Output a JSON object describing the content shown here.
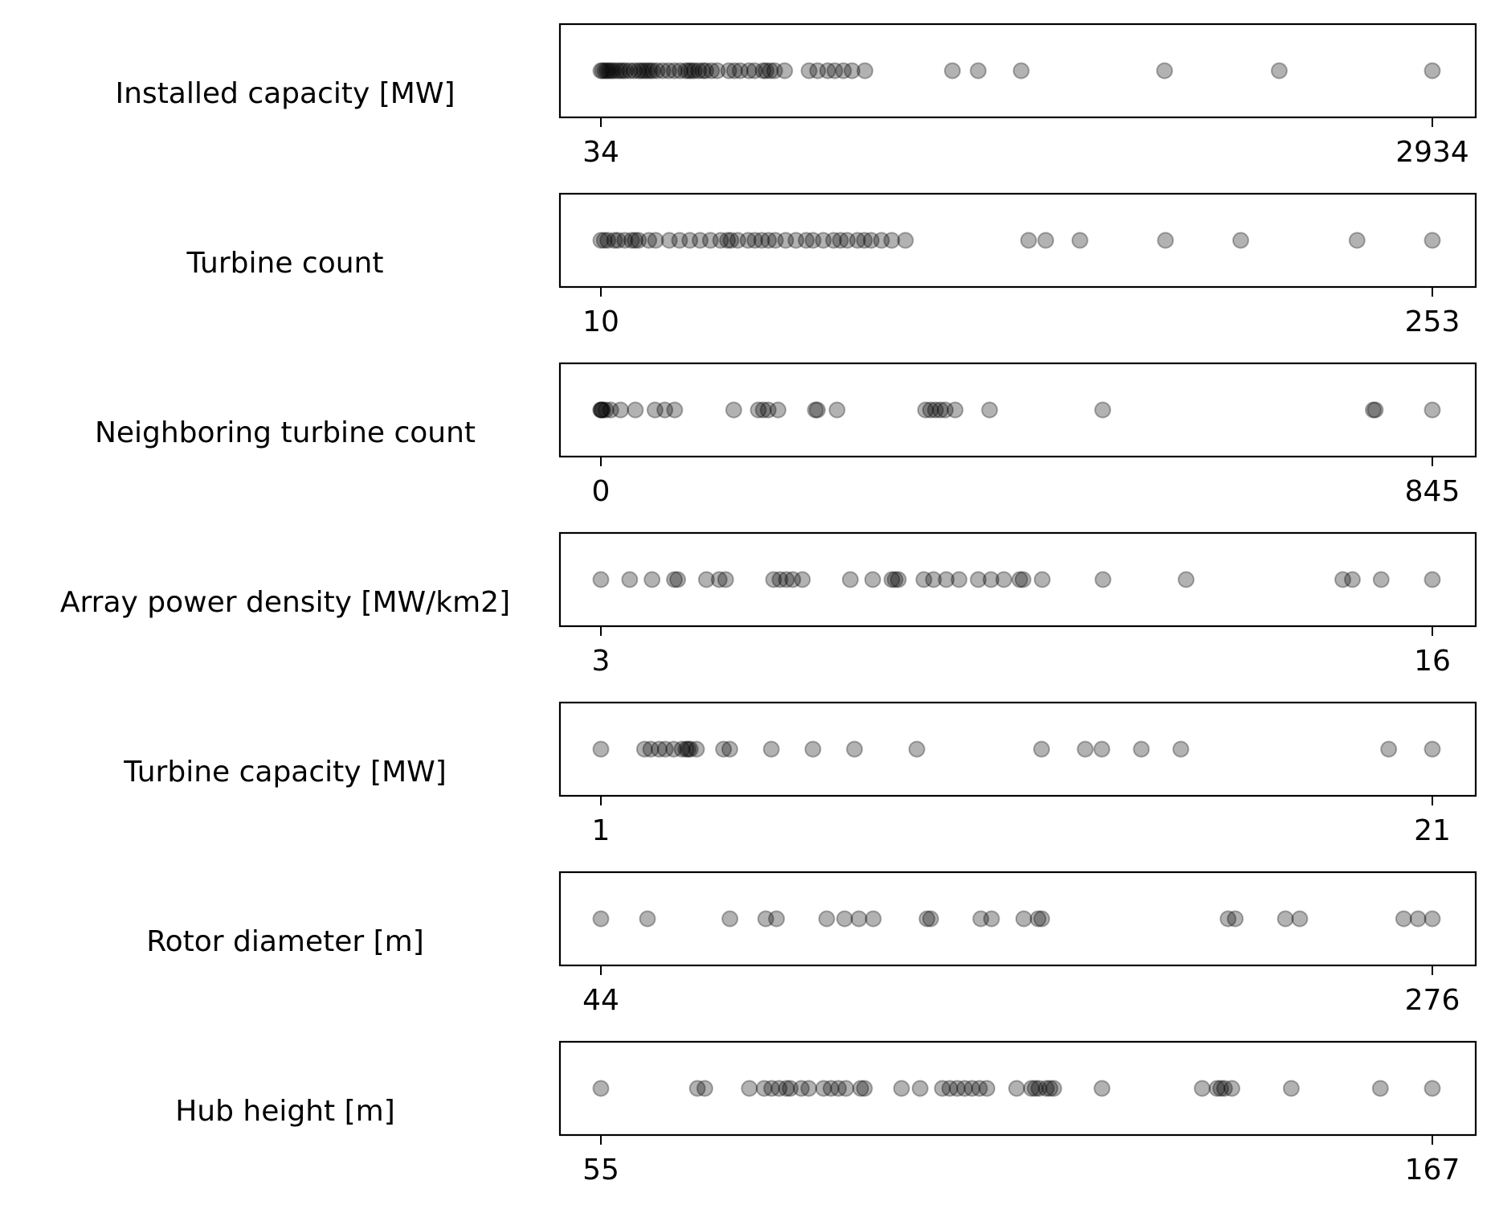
{
  "chart_data": {
    "type": "strip",
    "marker_color": "#000000",
    "marker_alpha": 0.3,
    "panels": [
      {
        "label": "Installed capacity [MW]",
        "range": [
          34,
          2934
        ],
        "tick_labels": [
          "34",
          "2934"
        ],
        "values": [
          34,
          40,
          48,
          55,
          62,
          70,
          78,
          90,
          100,
          110,
          120,
          135,
          150,
          165,
          175,
          185,
          195,
          205,
          215,
          230,
          250,
          270,
          290,
          310,
          330,
          340,
          350,
          360,
          375,
          390,
          400,
          420,
          440,
          480,
          500,
          520,
          550,
          570,
          600,
          610,
          625,
          640,
          675,
          760,
          790,
          825,
          850,
          880,
          910,
          955,
          1260,
          1350,
          1500,
          2000,
          2400,
          2934
        ]
      },
      {
        "label": "Turbine count",
        "range": [
          10,
          253
        ],
        "tick_labels": [
          "10",
          "253"
        ],
        "values": [
          10,
          11,
          12,
          14,
          15,
          17,
          19,
          20,
          21,
          24,
          26,
          30,
          33,
          36,
          39,
          42,
          45,
          47,
          48,
          50,
          53,
          55,
          57,
          59,
          61,
          64,
          67,
          70,
          72,
          75,
          78,
          80,
          82,
          85,
          87,
          89,
          92,
          95,
          99,
          135,
          140,
          150,
          175,
          197,
          231,
          253
        ]
      },
      {
        "label": "Neighboring turbine count",
        "range": [
          0,
          845
        ],
        "tick_labels": [
          "0",
          "845"
        ],
        "values": [
          0,
          0,
          1,
          2,
          5,
          10,
          20,
          35,
          55,
          65,
          75,
          135,
          160,
          165,
          170,
          180,
          218,
          220,
          240,
          330,
          335,
          340,
          345,
          350,
          360,
          395,
          510,
          785,
          787,
          845
        ]
      },
      {
        "label": "Array power density [MW/km2]",
        "range": [
          3,
          16
        ],
        "tick_labels": [
          "3",
          "16"
        ],
        "values": [
          3,
          3.45,
          3.8,
          4.15,
          4.2,
          4.65,
          4.85,
          4.95,
          5.7,
          5.8,
          5.9,
          6.0,
          6.15,
          6.9,
          7.25,
          7.55,
          7.6,
          7.65,
          8.05,
          8.2,
          8.4,
          8.6,
          8.9,
          9.1,
          9.3,
          9.55,
          9.6,
          9.9,
          10.85,
          12.15,
          14.6,
          14.75,
          15.2,
          16
        ]
      },
      {
        "label": "Turbine capacity [MW]",
        "range": [
          1,
          21
        ],
        "tick_labels": [
          "1",
          "21"
        ],
        "values": [
          1,
          2.05,
          2.2,
          2.4,
          2.55,
          2.75,
          2.95,
          3.05,
          3.1,
          3.15,
          3.3,
          3.95,
          4.1,
          5.1,
          6.1,
          7.1,
          8.6,
          11.6,
          12.65,
          13.05,
          14.0,
          14.95,
          19.95,
          21
        ]
      },
      {
        "label": "Rotor diameter [m]",
        "range": [
          44,
          276
        ],
        "tick_labels": [
          "44",
          "276"
        ],
        "values": [
          44,
          57,
          80,
          90,
          93,
          107,
          112,
          116,
          120,
          135,
          136,
          150,
          153,
          162,
          166,
          167,
          219,
          221,
          235,
          239,
          268,
          272,
          276
        ]
      },
      {
        "label": "Hub height [m]",
        "range": [
          55,
          167
        ],
        "tick_labels": [
          "55",
          "167"
        ],
        "values": [
          55,
          68,
          69,
          75,
          77,
          78,
          79,
          80,
          80.5,
          82,
          83,
          85,
          86,
          87,
          88,
          90,
          90.5,
          95.5,
          98,
          101,
          102,
          103,
          104,
          105,
          106,
          107,
          111,
          113,
          113.5,
          114,
          115,
          115.5,
          116,
          122.5,
          136,
          138,
          138.5,
          139,
          140,
          148,
          160,
          167
        ]
      }
    ]
  }
}
